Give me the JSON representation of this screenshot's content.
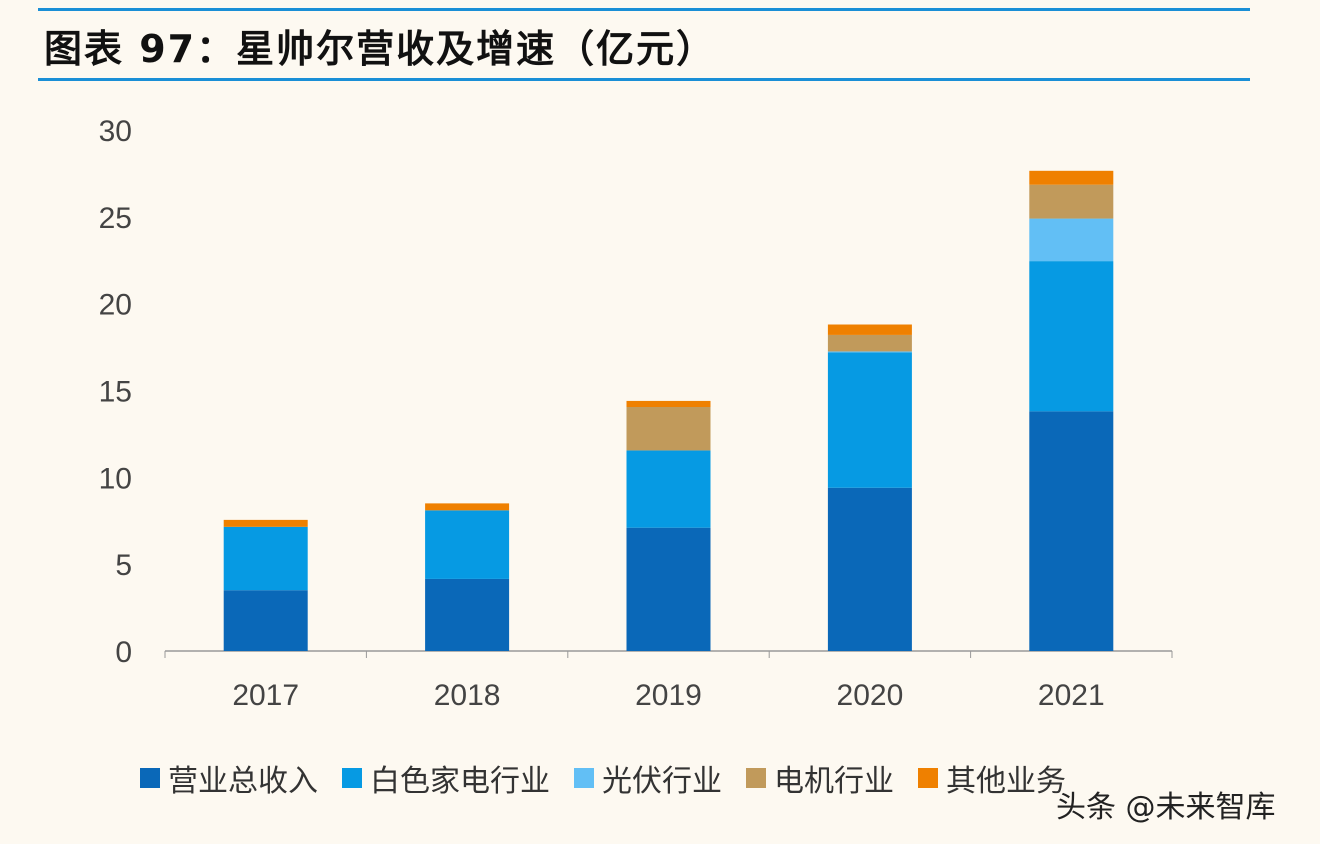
{
  "title": "图表 97：星帅尔营收及增速（亿元）",
  "watermark": "头条 @未来智库",
  "chart_data": {
    "type": "bar",
    "stacked": true,
    "title": "图表 97：星帅尔营收及增速（亿元）",
    "categories": [
      "2017",
      "2018",
      "2019",
      "2020",
      "2021"
    ],
    "ylim": [
      0,
      30
    ],
    "yticks": [
      0,
      5,
      10,
      15,
      20,
      25,
      30
    ],
    "grid": false,
    "legend_position": "bottom",
    "series": [
      {
        "name": "营业总收入",
        "color": "#0a68b8",
        "values": [
          3.5,
          4.15,
          7.1,
          9.4,
          13.8
        ]
      },
      {
        "name": "白色家电行业",
        "color": "#069ae3",
        "values": [
          3.65,
          3.95,
          4.45,
          7.8,
          8.65
        ]
      },
      {
        "name": "光伏行业",
        "color": "#62bff5",
        "values": [
          0,
          0,
          0,
          0.05,
          2.45
        ]
      },
      {
        "name": "电机行业",
        "color": "#c19a5b",
        "values": [
          0,
          0,
          2.5,
          0.95,
          1.95
        ]
      },
      {
        "name": "其他业务",
        "color": "#ef8000",
        "values": [
          0.4,
          0.4,
          0.35,
          0.6,
          0.8
        ]
      }
    ]
  }
}
